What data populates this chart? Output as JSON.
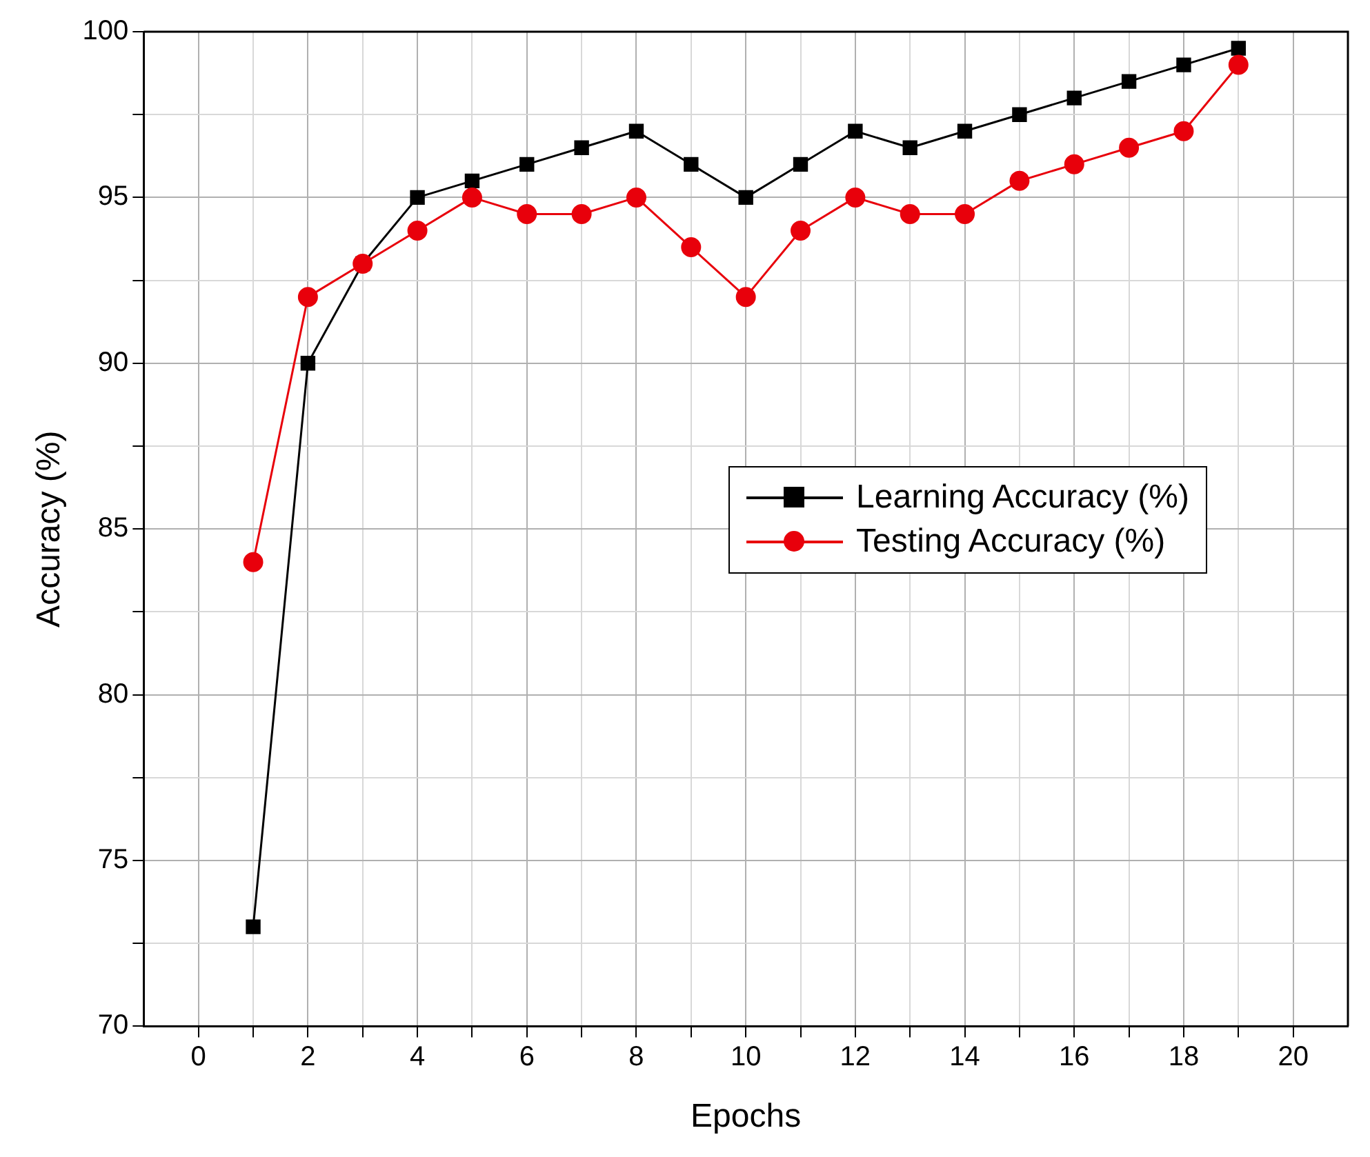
{
  "chart_data": {
    "type": "line",
    "xlabel": "Epochs",
    "ylabel": "Accuracy (%)",
    "x": [
      1,
      2,
      3,
      4,
      5,
      6,
      7,
      8,
      9,
      10,
      11,
      12,
      13,
      14,
      15,
      16,
      17,
      18,
      19
    ],
    "series": [
      {
        "name": "Learning Accuracy (%)",
        "color": "#000000",
        "marker": "square",
        "values": [
          73,
          90,
          93,
          95,
          95.5,
          96,
          96.5,
          97,
          96,
          95,
          96,
          97,
          96.5,
          97,
          97.5,
          98,
          98.5,
          99,
          99.5
        ]
      },
      {
        "name": "Testing Accuracy (%)",
        "color": "#e8000b",
        "marker": "circle",
        "values": [
          84,
          92,
          93,
          94,
          95,
          94.5,
          94.5,
          95,
          93.5,
          92,
          94,
          95,
          94.5,
          94.5,
          95.5,
          96,
          96.5,
          97,
          99
        ]
      }
    ],
    "xlim": [
      -1,
      21
    ],
    "xticks": [
      0,
      {
        "value": 1,
        "label": null
      },
      2,
      {
        "value": 3,
        "label": null
      },
      4,
      {
        "value": 5,
        "label": null
      },
      6,
      {
        "value": 7,
        "label": null
      },
      8,
      {
        "value": 9,
        "label": null
      },
      10,
      {
        "value": 11,
        "label": null
      },
      12,
      {
        "value": 13,
        "label": null
      },
      14,
      {
        "value": 15,
        "label": null
      },
      16,
      {
        "value": 17,
        "label": null
      },
      18,
      {
        "value": 19,
        "label": null
      },
      20
    ],
    "ylim": [
      70,
      100
    ],
    "yticks": [
      70,
      {
        "value": 72.5,
        "label": null
      },
      75,
      {
        "value": 77.5,
        "label": null
      },
      80,
      {
        "value": 82.5,
        "label": null
      },
      85,
      {
        "value": 87.5,
        "label": null
      },
      90,
      {
        "value": 92.5,
        "label": null
      },
      95,
      {
        "value": 97.5,
        "label": null
      },
      100
    ],
    "grid": true,
    "legend": "right",
    "line_style": "solid"
  }
}
